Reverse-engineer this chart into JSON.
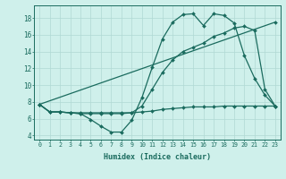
{
  "xlabel": "Humidex (Indice chaleur)",
  "xlim": [
    -0.5,
    23.5
  ],
  "ylim": [
    3.5,
    19.5
  ],
  "yticks": [
    4,
    6,
    8,
    10,
    12,
    14,
    16,
    18
  ],
  "xticks": [
    0,
    1,
    2,
    3,
    4,
    5,
    6,
    7,
    8,
    9,
    10,
    11,
    12,
    13,
    14,
    15,
    16,
    17,
    18,
    19,
    20,
    21,
    22,
    23
  ],
  "bg_color": "#cff0eb",
  "line_color": "#1a6b5e",
  "grid_color": "#b0d8d3",
  "lines": [
    {
      "x": [
        0,
        1,
        2,
        3,
        4,
        5,
        6,
        7,
        8,
        9,
        10,
        11,
        12,
        13,
        14,
        15,
        16,
        17,
        18,
        19,
        20,
        21,
        22,
        23
      ],
      "y": [
        7.7,
        6.8,
        6.8,
        6.7,
        6.6,
        5.9,
        5.1,
        4.4,
        4.4,
        5.8,
        8.5,
        12.1,
        15.5,
        17.5,
        18.4,
        18.5,
        17.1,
        18.5,
        18.3,
        17.4,
        13.5,
        10.8,
        8.8,
        7.5
      ]
    },
    {
      "x": [
        0,
        23
      ],
      "y": [
        7.7,
        17.5
      ]
    },
    {
      "x": [
        0,
        1,
        2,
        3,
        4,
        5,
        6,
        7,
        8,
        9,
        10,
        11,
        12,
        13,
        14,
        15,
        16,
        17,
        18,
        19,
        20,
        21,
        22,
        23
      ],
      "y": [
        7.7,
        6.8,
        6.8,
        6.7,
        6.7,
        6.7,
        6.7,
        6.7,
        6.7,
        6.7,
        6.8,
        6.9,
        7.1,
        7.2,
        7.3,
        7.4,
        7.4,
        7.4,
        7.5,
        7.5,
        7.5,
        7.5,
        7.5,
        7.5
      ]
    },
    {
      "x": [
        0,
        1,
        2,
        3,
        4,
        5,
        6,
        7,
        8,
        9,
        10,
        11,
        12,
        13,
        14,
        15,
        16,
        17,
        18,
        19,
        20,
        21,
        22,
        23
      ],
      "y": [
        7.7,
        6.8,
        6.8,
        6.7,
        6.6,
        6.6,
        6.6,
        6.6,
        6.6,
        6.7,
        7.5,
        9.5,
        11.5,
        13.0,
        14.0,
        14.5,
        15.0,
        15.8,
        16.2,
        16.8,
        17.0,
        16.5,
        9.5,
        7.5
      ]
    }
  ]
}
